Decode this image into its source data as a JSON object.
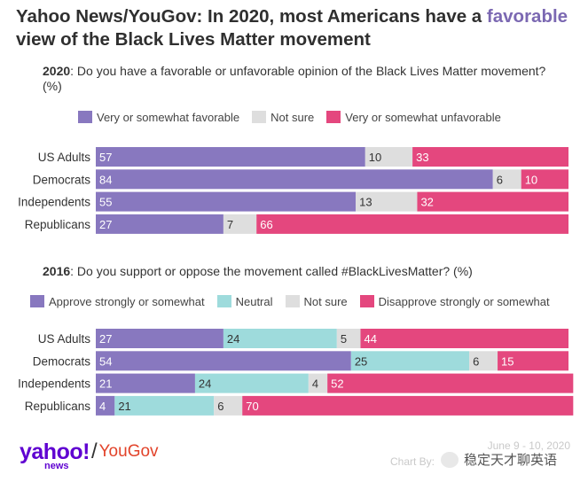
{
  "title": {
    "part1": "Yahoo News/YouGov: In 2020, most Americans have a ",
    "accent": "favorable",
    "part2": " view of the Black Lives Matter movement"
  },
  "panel_2020": {
    "year": "2020",
    "question": ": Do you have a favorable or unfavorable opinion of the Black Lives Matter movement? (%)",
    "legend": [
      {
        "label": "Very or somewhat favorable",
        "color": "#8878bf"
      },
      {
        "label": "Not sure",
        "color": "#dedede"
      },
      {
        "label": "Very or somewhat unfavorable",
        "color": "#e4477e"
      }
    ]
  },
  "panel_2016": {
    "year": "2016",
    "question": ": Do you support or oppose the movement called #BlackLivesMatter? (%)",
    "legend": [
      {
        "label": "Approve strongly or somewhat",
        "color": "#8878bf"
      },
      {
        "label": "Neutral",
        "color": "#9edbdc"
      },
      {
        "label": "Not sure",
        "color": "#dedede"
      },
      {
        "label": "Disapprove strongly or somewhat",
        "color": "#e4477e"
      }
    ]
  },
  "chart_data": [
    {
      "type": "bar",
      "stacked": true,
      "orientation": "horizontal",
      "title": "2020: Do you have a favorable or unfavorable opinion of the Black Lives Matter movement? (%)",
      "categories": [
        "US Adults",
        "Democrats",
        "Independents",
        "Republicans"
      ],
      "series": [
        {
          "name": "Very or somewhat favorable",
          "color": "#8878bf",
          "label_color": "#ffffff",
          "values": [
            57,
            84,
            55,
            27
          ]
        },
        {
          "name": "Not sure",
          "color": "#dedede",
          "label_color": "#333333",
          "values": [
            10,
            6,
            13,
            7
          ]
        },
        {
          "name": "Very or somewhat unfavorable",
          "color": "#e4477e",
          "label_color": "#ffffff",
          "values": [
            33,
            10,
            32,
            66
          ]
        }
      ],
      "xlim": [
        0,
        100
      ],
      "legend_position": "top",
      "grid": false
    },
    {
      "type": "bar",
      "stacked": true,
      "orientation": "horizontal",
      "title": "2016: Do you support or oppose the movement called #BlackLivesMatter? (%)",
      "categories": [
        "US Adults",
        "Democrats",
        "Independents",
        "Republicans"
      ],
      "series": [
        {
          "name": "Approve strongly or somewhat",
          "color": "#8878bf",
          "label_color": "#ffffff",
          "values": [
            27,
            54,
            21,
            4
          ]
        },
        {
          "name": "Neutral",
          "color": "#9edbdc",
          "label_color": "#333333",
          "values": [
            24,
            25,
            24,
            21
          ]
        },
        {
          "name": "Not sure",
          "color": "#dedede",
          "label_color": "#333333",
          "values": [
            5,
            6,
            4,
            6
          ]
        },
        {
          "name": "Disapprove strongly or somewhat",
          "color": "#e4477e",
          "label_color": "#ffffff",
          "values": [
            44,
            15,
            52,
            70
          ]
        }
      ],
      "xlim": [
        0,
        100
      ],
      "legend_position": "top",
      "grid": false
    }
  ],
  "footer": {
    "logo_yahoo": "yahoo!",
    "logo_news": "news",
    "logo_slash": "/",
    "logo_yougov": "YouGov",
    "date": "June 9 - 10, 2020",
    "credit": "Chart By:",
    "watermark": "稳定天才聊英语"
  }
}
